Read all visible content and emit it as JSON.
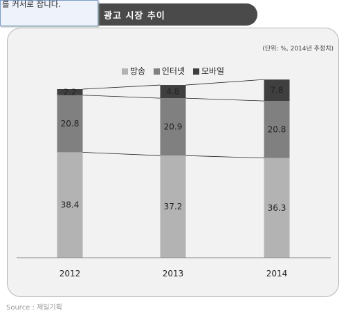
{
  "tooltip_text": "를 커서로 잡니다.",
  "unit_note": "(단위: %, 2014년 추정치)",
  "source": "Source : 제일기획",
  "colors": {
    "broadcast": "#b3b3b3",
    "internet": "#808080",
    "mobile": "#3f3f3f"
  },
  "chart_data": {
    "type": "bar",
    "stacked": true,
    "title": "광고 시장 추이",
    "categories": [
      "2012",
      "2013",
      "2014"
    ],
    "series": [
      {
        "name": "방송",
        "values": [
          38.4,
          37.2,
          36.3
        ]
      },
      {
        "name": "인터넷",
        "values": [
          20.8,
          20.9,
          20.8
        ]
      },
      {
        "name": "모바일",
        "values": [
          2.2,
          4.8,
          7.8
        ]
      }
    ],
    "legend_position": "top-center",
    "grid": false
  }
}
